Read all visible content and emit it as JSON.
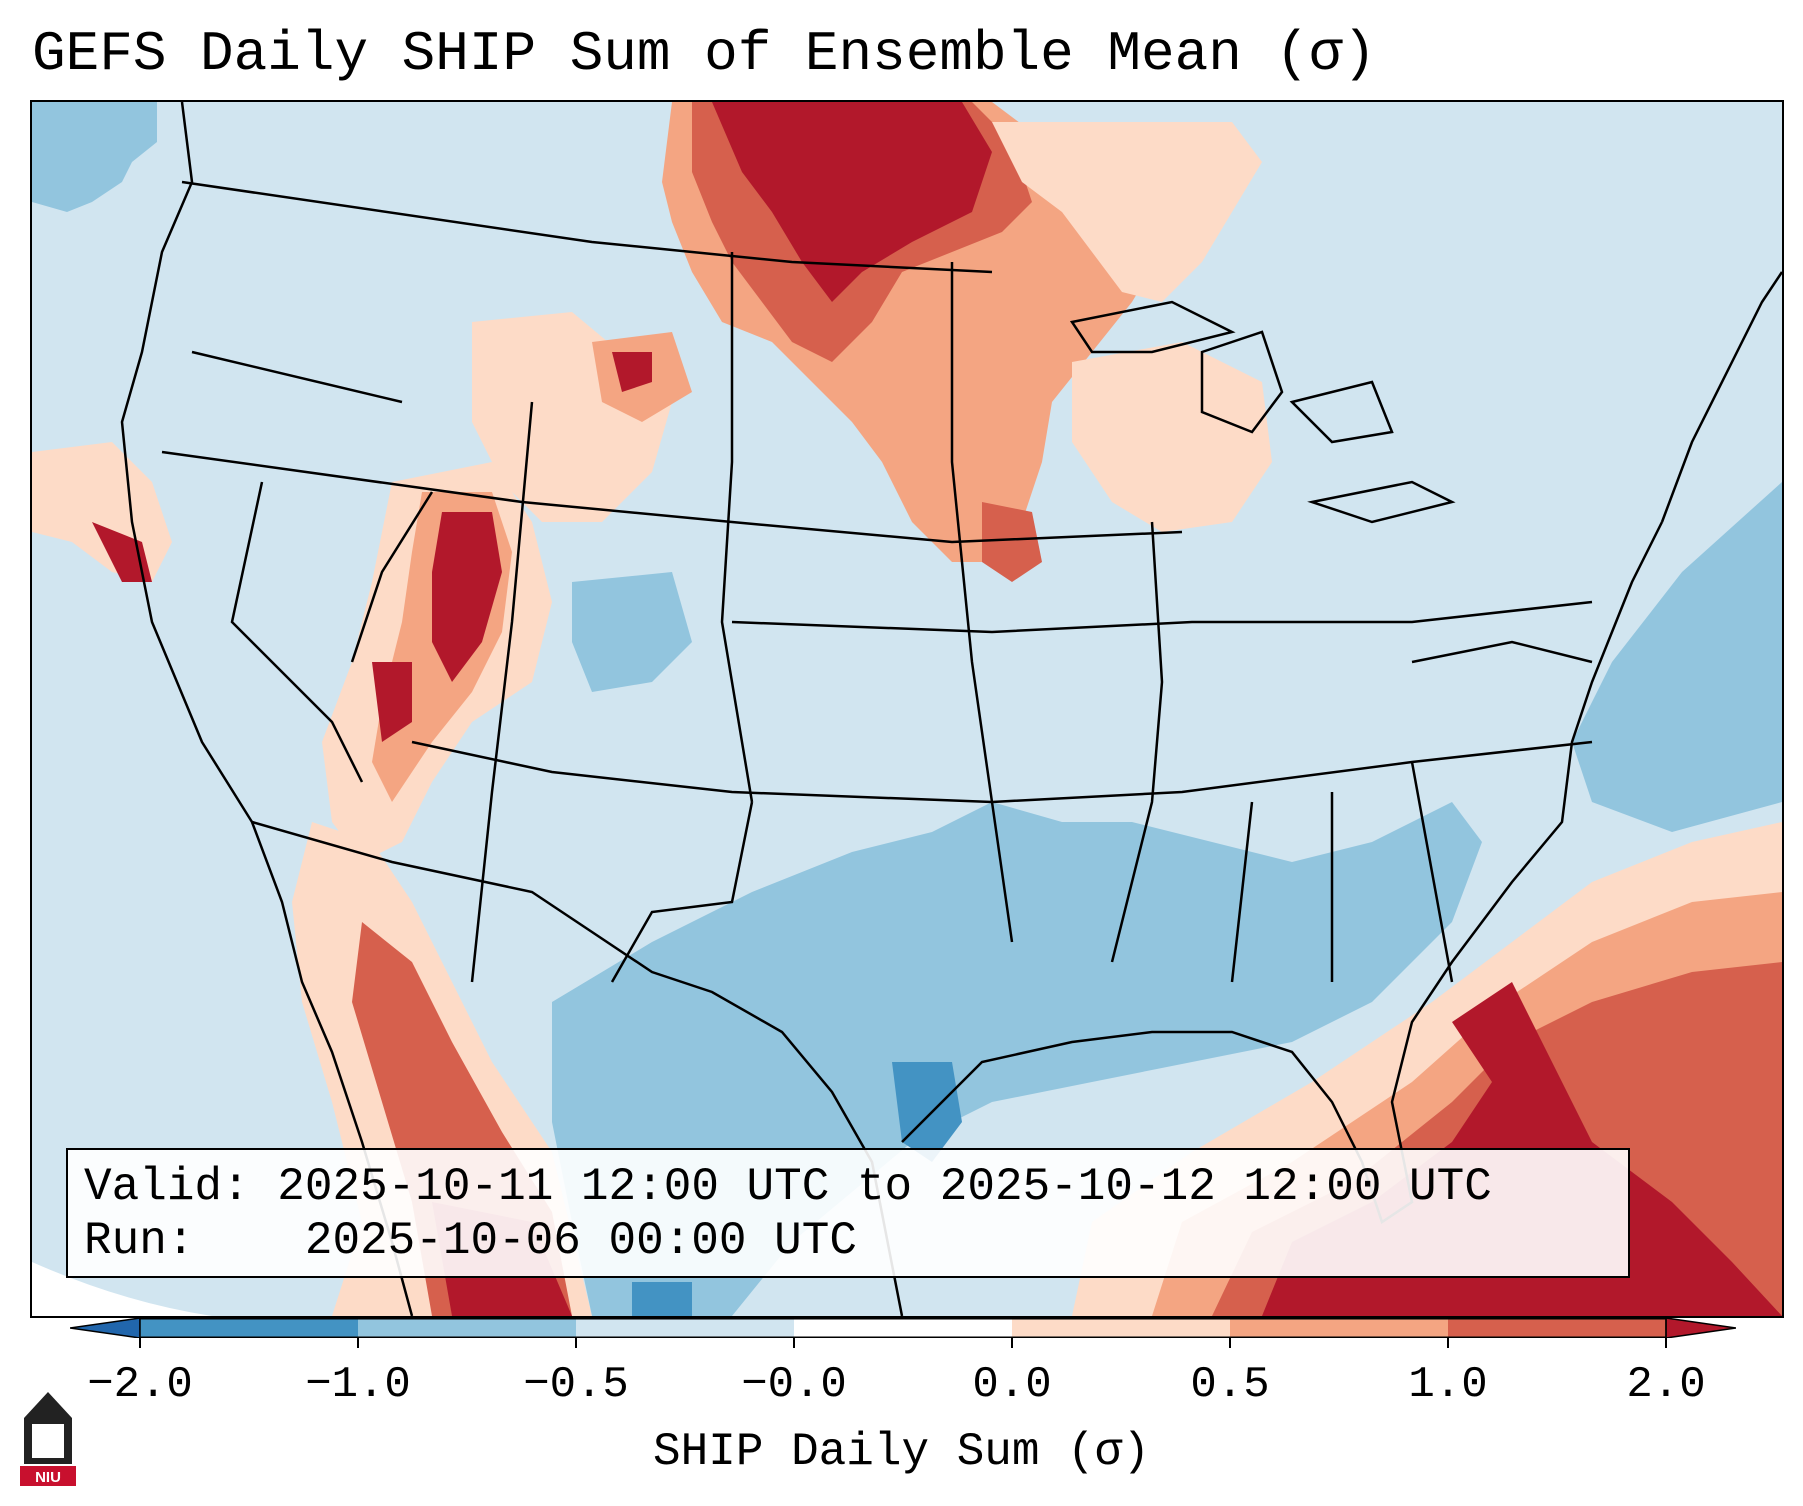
{
  "title": "GEFS Daily SHIP Sum of Ensemble Mean (σ)",
  "info_box": {
    "valid_label": "Valid:",
    "valid_value": "2025-10-11 12:00 UTC to 2025-10-12 12:00 UTC",
    "run_label": "Run:",
    "run_value": "2025-10-06 00:00 UTC"
  },
  "colorbar": {
    "title": "SHIP Daily Sum (σ)",
    "tick_labels": [
      "−2.0",
      "−1.0",
      "−0.5",
      "−0.0",
      "0.0",
      "0.5",
      "1.0",
      "2.0"
    ],
    "bins": [
      {
        "range": "< -2.0",
        "color": "#2166ac"
      },
      {
        "range": "-2.0 to -1.0",
        "color": "#4393c3"
      },
      {
        "range": "-1.0 to -0.5",
        "color": "#92c5de"
      },
      {
        "range": "-0.5 to -0.0",
        "color": "#d1e5f0"
      },
      {
        "range": "-0.0 to 0.0",
        "color": "#ffffff"
      },
      {
        "range": "0.0 to 0.5",
        "color": "#fddbc7"
      },
      {
        "range": "0.5 to 1.0",
        "color": "#f4a582"
      },
      {
        "range": "1.0 to 2.0",
        "color": "#d6604d"
      },
      {
        "range": "> 2.0",
        "color": "#b2182b"
      }
    ]
  },
  "logo": {
    "text": "NIU",
    "color": "#c8102e"
  },
  "map": {
    "projection": "Lambert Conformal, CONUS",
    "regions": [
      {
        "name": "Northern Plains / Dakotas",
        "category": "> 2.0"
      },
      {
        "name": "Upper Midwest / Minnesota",
        "category": "0.5 to 1.0"
      },
      {
        "name": "Utah / Idaho",
        "category": "> 2.0"
      },
      {
        "name": "Texas / Gulf of Mexico",
        "category": "-1.0 to -0.5"
      },
      {
        "name": "Southeast coast / Florida / Atlantic",
        "category": "> 2.0"
      },
      {
        "name": "Western Atlantic",
        "category": "-1.0 to -0.5"
      },
      {
        "name": "Background",
        "category": "-0.5 to -0.0"
      }
    ]
  }
}
